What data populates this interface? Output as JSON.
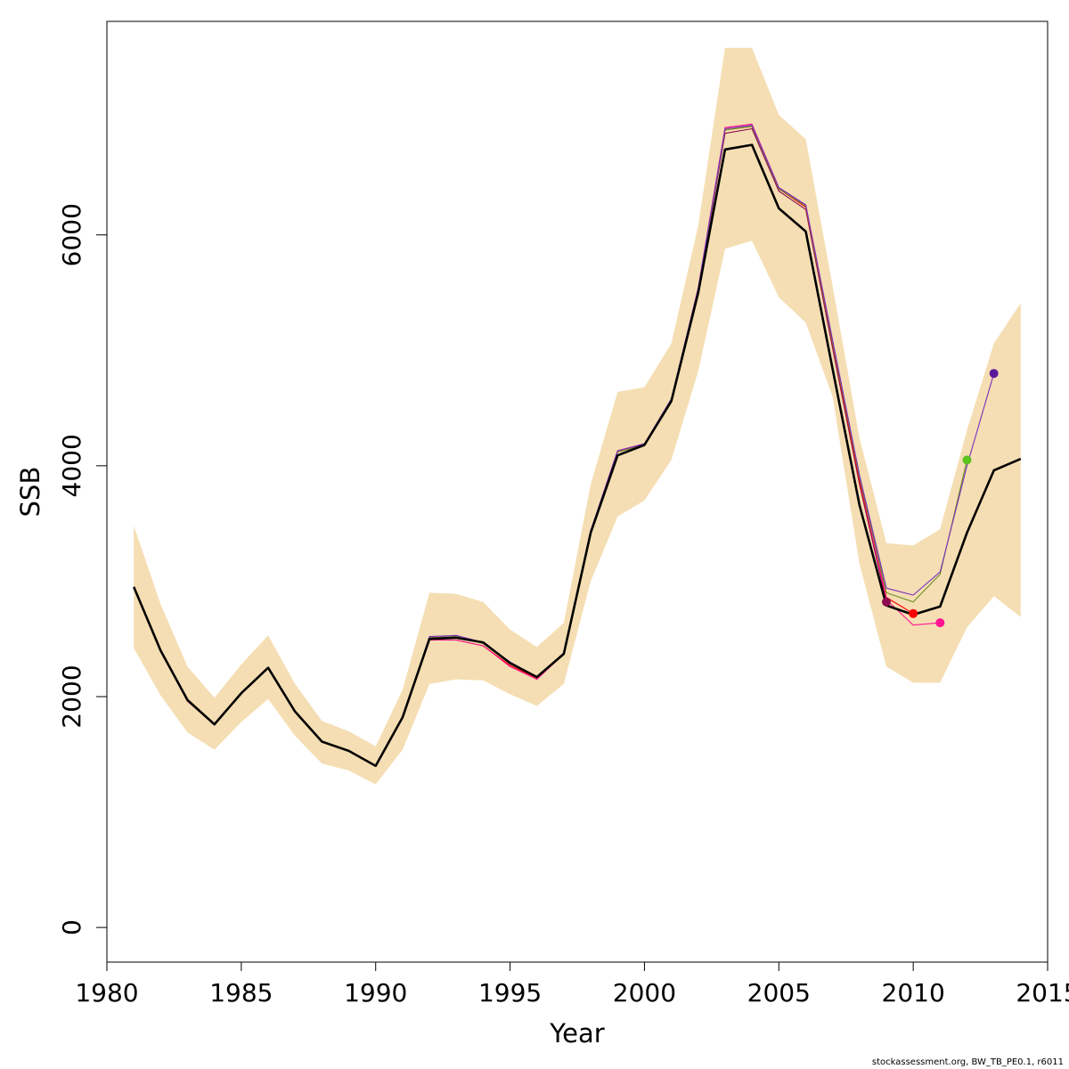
{
  "chart_data": {
    "type": "line",
    "xlabel": "Year",
    "ylabel": "SSB",
    "xlim": [
      1980,
      2015
    ],
    "ylim": [
      -300,
      7850
    ],
    "x_ticks": [
      1980,
      1985,
      1990,
      1995,
      2000,
      2005,
      2010,
      2015
    ],
    "y_ticks": [
      0,
      2000,
      4000,
      6000
    ],
    "grid": false,
    "legend": "none",
    "band": {
      "color": "#f5deb3",
      "x": [
        1981,
        1982,
        1983,
        1984,
        1985,
        1986,
        1987,
        1988,
        1989,
        1990,
        1991,
        1992,
        1993,
        1994,
        1995,
        1996,
        1997,
        1998,
        1999,
        2000,
        2001,
        2002,
        2003,
        2004,
        2005,
        2006,
        2007,
        2008,
        2009,
        2010,
        2011,
        2012,
        2013,
        2014
      ],
      "upper": [
        3480,
        2800,
        2260,
        1990,
        2280,
        2530,
        2110,
        1790,
        1700,
        1570,
        2060,
        2900,
        2890,
        2820,
        2580,
        2430,
        2640,
        3840,
        4640,
        4680,
        5060,
        6080,
        7620,
        7620,
        7040,
        6830,
        5560,
        4240,
        3330,
        3310,
        3450,
        4310,
        5060,
        5410
      ],
      "lower": [
        2420,
        2010,
        1690,
        1540,
        1780,
        1980,
        1660,
        1420,
        1360,
        1240,
        1540,
        2110,
        2150,
        2140,
        2020,
        1920,
        2110,
        3000,
        3560,
        3700,
        4050,
        4820,
        5880,
        5950,
        5460,
        5240,
        4600,
        3150,
        2260,
        2120,
        2120,
        2600,
        2870,
        2690
      ]
    },
    "series": [
      {
        "color": "#000000",
        "x": [
          1981,
          1982,
          1983,
          1984,
          1985,
          1986,
          1987,
          1988,
          1989,
          1990,
          1991,
          1992,
          1993,
          1994,
          1995,
          1996,
          1997,
          1998,
          1999,
          2000,
          2001,
          2002,
          2003,
          2004,
          2005,
          2006,
          2007,
          2008,
          2009,
          2010,
          2011,
          2012,
          2013,
          2014
        ],
        "values": [
          2950,
          2400,
          1970,
          1760,
          2030,
          2250,
          1870,
          1610,
          1530,
          1400,
          1820,
          2500,
          2510,
          2470,
          2290,
          2170,
          2370,
          3420,
          4090,
          4180,
          4560,
          5500,
          6740,
          6780,
          6230,
          6030,
          4840,
          3660,
          2790,
          2710,
          2780,
          3420,
          3960,
          4060
        ]
      },
      {
        "color": "#8b0a50",
        "x": [
          1981,
          1982,
          1983,
          1984,
          1985,
          1986,
          1987,
          1988,
          1989,
          1990,
          1991,
          1992,
          1993,
          1994,
          1995,
          1996,
          1997,
          1998,
          1999,
          2000,
          2001,
          2002,
          2003,
          2004,
          2005,
          2006,
          2007,
          2008,
          2009
        ],
        "values": [
          2950,
          2400,
          1970,
          1760,
          2030,
          2250,
          1870,
          1610,
          1530,
          1400,
          1820,
          2510,
          2520,
          2460,
          2290,
          2170,
          2370,
          3430,
          4120,
          4180,
          4570,
          5520,
          6880,
          6920,
          6380,
          6220,
          5020,
          3840,
          2820
        ]
      },
      {
        "color": "#ff0000",
        "x": [
          1981,
          1982,
          1983,
          1984,
          1985,
          1986,
          1987,
          1988,
          1989,
          1990,
          1991,
          1992,
          1993,
          1994,
          1995,
          1996,
          1997,
          1998,
          1999,
          2000,
          2001,
          2002,
          2003,
          2004,
          2005,
          2006,
          2007,
          2008,
          2009,
          2010
        ],
        "values": [
          2950,
          2400,
          1960,
          1760,
          2030,
          2250,
          1870,
          1610,
          1530,
          1400,
          1820,
          2490,
          2490,
          2440,
          2270,
          2160,
          2370,
          3430,
          4130,
          4190,
          4570,
          5530,
          6910,
          6940,
          6400,
          6240,
          5060,
          3870,
          2860,
          2720
        ]
      },
      {
        "color": "#ff1493",
        "x": [
          1981,
          1982,
          1983,
          1984,
          1985,
          1986,
          1987,
          1988,
          1989,
          1990,
          1991,
          1992,
          1993,
          1994,
          1995,
          1996,
          1997,
          1998,
          1999,
          2000,
          2001,
          2002,
          2003,
          2004,
          2005,
          2006,
          2007,
          2008,
          2009,
          2010,
          2011
        ],
        "values": [
          2950,
          2400,
          1960,
          1760,
          2030,
          2250,
          1870,
          1610,
          1530,
          1400,
          1820,
          2490,
          2490,
          2440,
          2260,
          2150,
          2370,
          3430,
          4130,
          4190,
          4570,
          5540,
          6930,
          6960,
          6410,
          6260,
          5080,
          3900,
          2840,
          2620,
          2640
        ]
      },
      {
        "color": "#6b8e23",
        "x": [
          1981,
          1982,
          1983,
          1984,
          1985,
          1986,
          1987,
          1988,
          1989,
          1990,
          1991,
          1992,
          1993,
          1994,
          1995,
          1996,
          1997,
          1998,
          1999,
          2000,
          2001,
          2002,
          2003,
          2004,
          2005,
          2006,
          2007,
          2008,
          2009,
          2010,
          2011,
          2012
        ],
        "values": [
          2950,
          2400,
          1970,
          1760,
          2030,
          2250,
          1870,
          1610,
          1530,
          1400,
          1820,
          2510,
          2520,
          2460,
          2290,
          2170,
          2370,
          3430,
          4120,
          4180,
          4570,
          5530,
          6910,
          6940,
          6400,
          6250,
          5070,
          3900,
          2900,
          2820,
          3060,
          4050
        ]
      },
      {
        "color": "#7b2fbe",
        "x": [
          1981,
          1982,
          1983,
          1984,
          1985,
          1986,
          1987,
          1988,
          1989,
          1990,
          1991,
          1992,
          1993,
          1994,
          1995,
          1996,
          1997,
          1998,
          1999,
          2000,
          2001,
          2002,
          2003,
          2004,
          2005,
          2006,
          2007,
          2008,
          2009,
          2010,
          2011,
          2012,
          2013
        ],
        "values": [
          2950,
          2400,
          1970,
          1760,
          2030,
          2250,
          1870,
          1610,
          1530,
          1400,
          1820,
          2520,
          2530,
          2470,
          2300,
          2170,
          2380,
          3440,
          4130,
          4190,
          4580,
          5540,
          6920,
          6950,
          6410,
          6260,
          5090,
          3920,
          2940,
          2880,
          3080,
          4000,
          4800
        ]
      }
    ],
    "endpoints": [
      {
        "x": 2009,
        "y": 2820,
        "color": "#8b0a50"
      },
      {
        "x": 2010,
        "y": 2720,
        "color": "#ff0000"
      },
      {
        "x": 2011,
        "y": 2640,
        "color": "#ff1493"
      },
      {
        "x": 2012,
        "y": 4050,
        "color": "#5cc21e"
      },
      {
        "x": 2013,
        "y": 4800,
        "color": "#5b1a9c"
      }
    ]
  },
  "footer": "stockassessment.org, BW_TB_PE0.1, r6011"
}
